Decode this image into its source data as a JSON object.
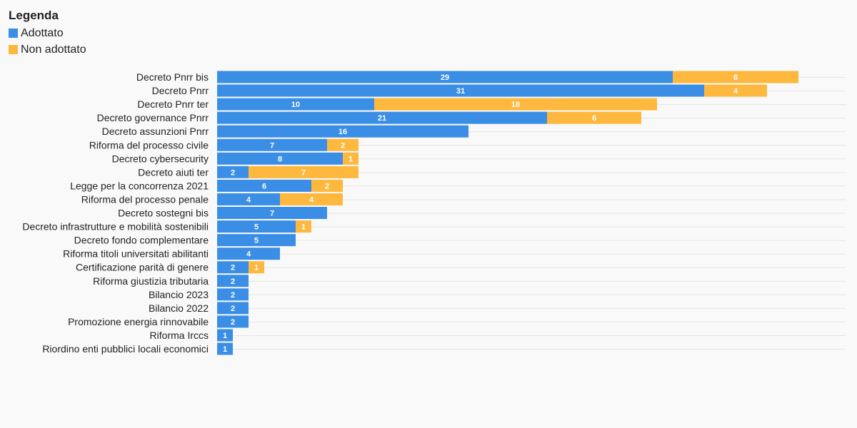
{
  "legend": {
    "title": "Legenda",
    "items": [
      {
        "label": "Adottato",
        "color": "#3a8ee6"
      },
      {
        "label": "Non adottato",
        "color": "#fdb83d"
      }
    ]
  },
  "chart_data": {
    "type": "bar",
    "orientation": "horizontal",
    "stacked": true,
    "categories": [
      "Decreto Pnrr bis",
      "Decreto Pnrr",
      "Decreto Pnrr ter",
      "Decreto governance Pnrr",
      "Decreto assunzioni Pnrr",
      "Riforma del processo civile",
      "Decreto cybersecurity",
      "Decreto aiuti ter",
      "Legge per la concorrenza 2021",
      "Riforma del processo penale",
      "Decreto sostegni bis",
      "Decreto infrastrutture e mobilità sostenibili",
      "Decreto fondo complementare",
      "Riforma titoli universitati abilitanti",
      "Certificazione parità di genere",
      "Riforma giustizia tributaria",
      "Bilancio 2023",
      "Bilancio 2022",
      "Promozione energia rinnovabile",
      "Riforma Irccs",
      "Riordino enti pubblici locali economici"
    ],
    "series": [
      {
        "name": "Adottato",
        "color": "#3a8ee6",
        "values": [
          29,
          31,
          10,
          21,
          16,
          7,
          8,
          2,
          6,
          4,
          7,
          5,
          5,
          4,
          2,
          2,
          2,
          2,
          2,
          1,
          1
        ]
      },
      {
        "name": "Non adottato",
        "color": "#fdb83d",
        "values": [
          8,
          4,
          18,
          6,
          0,
          2,
          1,
          7,
          2,
          4,
          0,
          1,
          0,
          0,
          1,
          0,
          0,
          0,
          0,
          0,
          0
        ]
      }
    ],
    "xlim": [
      0,
      40
    ],
    "grid": true,
    "legend_position": "top-left"
  }
}
